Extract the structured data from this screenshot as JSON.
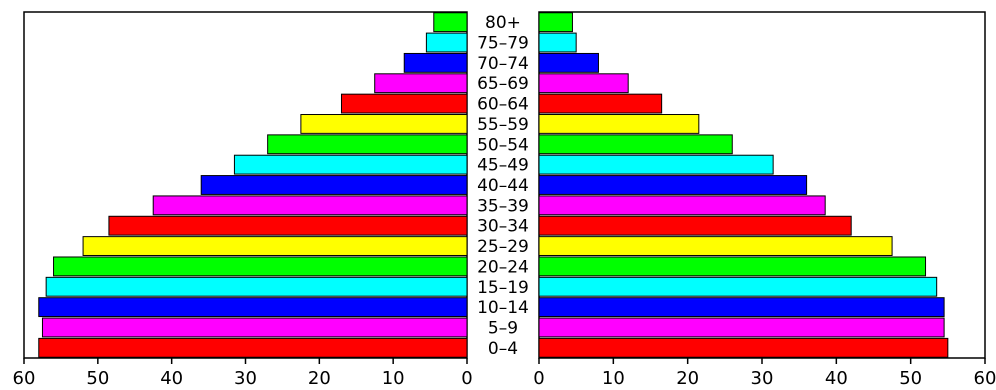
{
  "chart_data": {
    "type": "bar",
    "orientation": "horizontal",
    "layout": "population-pyramid",
    "categories": [
      "0-4",
      "5-9",
      "10-14",
      "15-19",
      "20-24",
      "25-29",
      "30-34",
      "35-39",
      "40-44",
      "45-49",
      "50-54",
      "55-59",
      "60-64",
      "65-69",
      "70-74",
      "75-79",
      "80+"
    ],
    "category_labels": [
      "0–4",
      "5–9",
      "10–14",
      "15–19",
      "20–24",
      "25–29",
      "30–34",
      "35–39",
      "40–44",
      "45–49",
      "50–54",
      "55–59",
      "60–64",
      "65–69",
      "70–74",
      "75–79",
      "80+"
    ],
    "series": [
      {
        "side": "left",
        "values": [
          58,
          57.5,
          58,
          57,
          56,
          52,
          48.5,
          42.5,
          36,
          31.5,
          27,
          22.5,
          17,
          12.5,
          8.5,
          5.5,
          4.5
        ]
      },
      {
        "side": "right",
        "values": [
          55,
          54.5,
          54.5,
          53.5,
          52,
          47.5,
          42,
          38.5,
          36,
          31.5,
          26,
          21.5,
          16.5,
          12,
          8,
          5,
          4.5
        ]
      }
    ],
    "bar_colors": [
      "#ff0000",
      "#ff00ff",
      "#0000ff",
      "#00ffff",
      "#00ff00",
      "#ffff00",
      "#ff0000",
      "#ff00ff",
      "#0000ff",
      "#00ffff",
      "#00ff00",
      "#ffff00",
      "#ff0000",
      "#ff00ff",
      "#0000ff",
      "#00ffff",
      "#00ff00"
    ],
    "xlim": [
      0,
      60
    ],
    "xticks": [
      0,
      10,
      20,
      30,
      40,
      50,
      60
    ],
    "title": "",
    "xlabel": "",
    "ylabel": "",
    "grid": false,
    "legend": "none"
  }
}
